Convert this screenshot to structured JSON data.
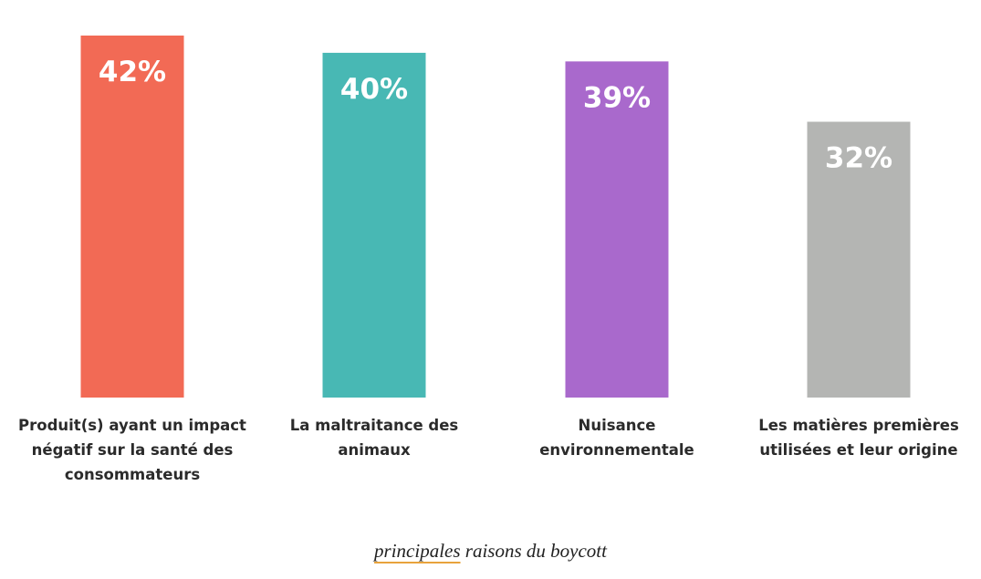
{
  "chart_data": {
    "type": "bar",
    "categories": [
      "Produit(s) ayant un impact négatif sur la santé des consommateurs",
      "La maltraitance des animaux",
      "Nuisance environnementale",
      "Les matières premières utilisées et leur origine"
    ],
    "category_lines": [
      [
        "Produit(s) ayant un impact",
        "négatif sur la santé des",
        "consommateurs"
      ],
      [
        "La maltraitance des",
        "animaux"
      ],
      [
        "Nuisance",
        "environnementale"
      ],
      [
        "Les matières premières",
        "utilisées et leur origine"
      ]
    ],
    "values": [
      42,
      40,
      39,
      32
    ],
    "value_labels": [
      "42%",
      "40%",
      "39%",
      "32%"
    ],
    "colors": [
      "#f26a55",
      "#48b8b4",
      "#a969cc",
      "#b4b5b3"
    ],
    "unit": "%",
    "ylim": [
      0,
      42
    ],
    "grid": false,
    "legend": "none",
    "caption_first_word": "principales",
    "caption_rest": " raisons du boycott"
  }
}
